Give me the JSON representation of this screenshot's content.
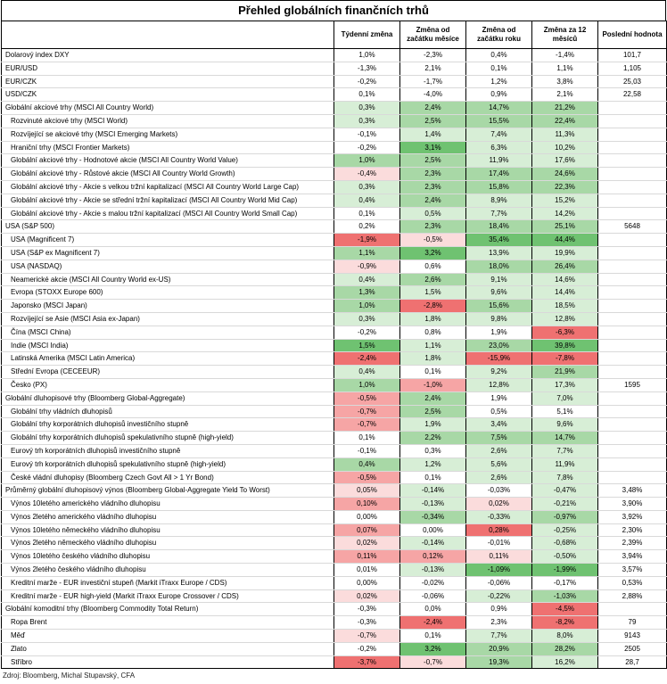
{
  "title": "Přehled globálních finančních trhů",
  "headers": [
    "",
    "Týdenní změna",
    "Změna od začátku měsíce",
    "Změna od začátku roku",
    "Změna za 12 měsíců",
    "Poslední hodnota"
  ],
  "colors": {
    "gL": "#d7eed6",
    "gM": "#a8d8a6",
    "gD": "#6fc271",
    "rL": "#fbdcdc",
    "rM": "#f6a5a5",
    "rD": "#ef7171"
  },
  "sections": [
    {
      "rows": [
        {
          "label": "Dolarový index DXY",
          "ind": false,
          "vals": [
            "1,0%",
            "-2,3%",
            "0,4%",
            "-1,4%",
            "101,7"
          ],
          "c": [
            "",
            "",
            "",
            "",
            ""
          ]
        },
        {
          "label": "EUR/USD",
          "ind": false,
          "vals": [
            "-1,3%",
            "2,1%",
            "0,1%",
            "1,1%",
            "1,105"
          ],
          "c": [
            "",
            "",
            "",
            "",
            ""
          ]
        },
        {
          "label": "EUR/CZK",
          "ind": false,
          "vals": [
            "-0,2%",
            "-1,7%",
            "1,2%",
            "3,8%",
            "25,03"
          ],
          "c": [
            "",
            "",
            "",
            "",
            ""
          ]
        },
        {
          "label": "USD/CZK",
          "ind": false,
          "vals": [
            "0,1%",
            "-4,0%",
            "0,9%",
            "2,1%",
            "22,58"
          ],
          "c": [
            "",
            "",
            "",
            "",
            ""
          ]
        }
      ]
    },
    {
      "rows": [
        {
          "label": "Globální akciové trhy (MSCI All Country World)",
          "ind": false,
          "vals": [
            "0,3%",
            "2,4%",
            "14,7%",
            "21,2%",
            ""
          ],
          "c": [
            "gL",
            "gM",
            "gM",
            "gM",
            ""
          ]
        },
        {
          "label": "Rozvinuté akciové trhy (MSCI World)",
          "ind": true,
          "vals": [
            "0,3%",
            "2,5%",
            "15,5%",
            "22,4%",
            ""
          ],
          "c": [
            "gL",
            "gM",
            "gM",
            "gM",
            ""
          ]
        },
        {
          "label": "Rozvíjející se akciové trhy (MSCI Emerging Markets)",
          "ind": true,
          "vals": [
            "-0,1%",
            "1,4%",
            "7,4%",
            "11,3%",
            ""
          ],
          "c": [
            "",
            "gL",
            "gL",
            "gL",
            ""
          ]
        },
        {
          "label": "Hraniční trhy (MSCI Frontier Markets)",
          "ind": true,
          "vals": [
            "-0,2%",
            "3,1%",
            "6,3%",
            "10,2%",
            ""
          ],
          "c": [
            "",
            "gD",
            "gL",
            "gL",
            ""
          ]
        },
        {
          "label": "Globální akciové trhy - Hodnotové akcie (MSCI All Country World Value)",
          "ind": true,
          "vals": [
            "1,0%",
            "2,5%",
            "11,9%",
            "17,6%",
            ""
          ],
          "c": [
            "gM",
            "gM",
            "gL",
            "gL",
            ""
          ]
        },
        {
          "label": "Globální akciové trhy - Růstové akcie (MSCI All Country World Growth)",
          "ind": true,
          "vals": [
            "-0,4%",
            "2,3%",
            "17,4%",
            "24,6%",
            ""
          ],
          "c": [
            "rL",
            "gM",
            "gM",
            "gM",
            ""
          ]
        },
        {
          "label": "Globální akciové trhy - Akcie s velkou tržní kapitalizací (MSCI All Country World Large Cap)",
          "ind": true,
          "vals": [
            "0,3%",
            "2,3%",
            "15,8%",
            "22,3%",
            ""
          ],
          "c": [
            "gL",
            "gM",
            "gM",
            "gM",
            ""
          ]
        },
        {
          "label": "Globální akciové trhy - Akcie se střední tržní kapitalizací (MSCI All Country World Mid Cap)",
          "ind": true,
          "vals": [
            "0,4%",
            "2,4%",
            "8,9%",
            "15,2%",
            ""
          ],
          "c": [
            "gL",
            "gM",
            "gL",
            "gL",
            ""
          ]
        },
        {
          "label": "Globální akciové trhy - Akcie s malou tržní kapitalizací (MSCI All Country World Small Cap)",
          "ind": true,
          "vals": [
            "0,1%",
            "0,5%",
            "7,7%",
            "14,2%",
            ""
          ],
          "c": [
            "",
            "gL",
            "gL",
            "gL",
            ""
          ]
        },
        {
          "label": "USA (S&P 500)",
          "ind": false,
          "vals": [
            "0,2%",
            "2,3%",
            "18,4%",
            "25,1%",
            "5648"
          ],
          "c": [
            "",
            "gM",
            "gM",
            "gM",
            ""
          ]
        },
        {
          "label": "USA (Magnificent 7)",
          "ind": true,
          "vals": [
            "-1,9%",
            "-0,5%",
            "35,4%",
            "44,4%",
            ""
          ],
          "c": [
            "rD",
            "rL",
            "gD",
            "gD",
            ""
          ]
        },
        {
          "label": "USA (S&P ex Magnificent 7)",
          "ind": true,
          "vals": [
            "1,1%",
            "3,2%",
            "13,9%",
            "19,9%",
            ""
          ],
          "c": [
            "gM",
            "gD",
            "gL",
            "gL",
            ""
          ]
        },
        {
          "label": "USA (NASDAQ)",
          "ind": true,
          "vals": [
            "-0,9%",
            "0,6%",
            "18,0%",
            "26,4%",
            ""
          ],
          "c": [
            "rL",
            "",
            "gM",
            "gM",
            ""
          ]
        },
        {
          "label": "Neamerické akcie (MSCI All Country World ex-US)",
          "ind": true,
          "vals": [
            "0,4%",
            "2,6%",
            "9,1%",
            "14,6%",
            ""
          ],
          "c": [
            "gL",
            "gM",
            "gL",
            "gL",
            ""
          ]
        },
        {
          "label": "Evropa (STOXX Europe 600)",
          "ind": true,
          "vals": [
            "1,3%",
            "1,5%",
            "9,6%",
            "14,4%",
            ""
          ],
          "c": [
            "gM",
            "gL",
            "gL",
            "gL",
            ""
          ]
        },
        {
          "label": "Japonsko (MSCI Japan)",
          "ind": true,
          "vals": [
            "1,0%",
            "-2,8%",
            "15,6%",
            "18,5%",
            ""
          ],
          "c": [
            "gM",
            "rD",
            "gM",
            "gL",
            ""
          ]
        },
        {
          "label": "Rozvíjející se Asie (MSCI Asia ex-Japan)",
          "ind": true,
          "vals": [
            "0,3%",
            "1,8%",
            "9,8%",
            "12,8%",
            ""
          ],
          "c": [
            "gL",
            "gL",
            "gL",
            "gL",
            ""
          ]
        },
        {
          "label": "Čína (MSCI China)",
          "ind": true,
          "vals": [
            "-0,2%",
            "0,8%",
            "1,9%",
            "-6,3%",
            ""
          ],
          "c": [
            "",
            "",
            "",
            "rD",
            ""
          ]
        },
        {
          "label": "Indie (MSCI India)",
          "ind": true,
          "vals": [
            "1,5%",
            "1,1%",
            "23,0%",
            "39,8%",
            ""
          ],
          "c": [
            "gD",
            "gL",
            "gM",
            "gD",
            ""
          ]
        },
        {
          "label": "Latinská Amerika (MSCI Latin America)",
          "ind": true,
          "vals": [
            "-2,4%",
            "1,8%",
            "-15,9%",
            "-7,8%",
            ""
          ],
          "c": [
            "rD",
            "gL",
            "rD",
            "rD",
            ""
          ]
        },
        {
          "label": "Střední Evropa (CECEEUR)",
          "ind": true,
          "vals": [
            "0,4%",
            "0,1%",
            "9,2%",
            "21,9%",
            ""
          ],
          "c": [
            "gL",
            "",
            "gL",
            "gM",
            ""
          ]
        },
        {
          "label": "Česko (PX)",
          "ind": true,
          "vals": [
            "1,0%",
            "-1,0%",
            "12,8%",
            "17,3%",
            "1595"
          ],
          "c": [
            "gM",
            "rM",
            "gL",
            "gL",
            ""
          ]
        }
      ]
    },
    {
      "rows": [
        {
          "label": "Globální dluhopisové trhy (Bloomberg Global-Aggregate)",
          "ind": false,
          "vals": [
            "-0,5%",
            "2,4%",
            "1,9%",
            "7,0%",
            ""
          ],
          "c": [
            "rM",
            "gM",
            "",
            "gL",
            ""
          ]
        },
        {
          "label": "Globální trhy vládních dluhopisů",
          "ind": true,
          "vals": [
            "-0,7%",
            "2,5%",
            "0,5%",
            "5,1%",
            ""
          ],
          "c": [
            "rM",
            "gM",
            "",
            "",
            ""
          ]
        },
        {
          "label": "Globální trhy korporátních dluhopisů investičního stupně",
          "ind": true,
          "vals": [
            "-0,7%",
            "1,9%",
            "3,4%",
            "9,6%",
            ""
          ],
          "c": [
            "rM",
            "gL",
            "gL",
            "gL",
            ""
          ]
        },
        {
          "label": "Globální trhy korporátních dluhopisů spekulativního stupně (high-yield)",
          "ind": true,
          "vals": [
            "0,1%",
            "2,2%",
            "7,5%",
            "14,7%",
            ""
          ],
          "c": [
            "",
            "gM",
            "gM",
            "gM",
            ""
          ]
        },
        {
          "label": "Eurový trh korporátních dluhopisů investičního stupně",
          "ind": true,
          "vals": [
            "-0,1%",
            "0,3%",
            "2,6%",
            "7,7%",
            ""
          ],
          "c": [
            "",
            "",
            "gL",
            "gL",
            ""
          ]
        },
        {
          "label": "Eurový trh korporátních dluhopisů spekulativního stupně (high-yield)",
          "ind": true,
          "vals": [
            "0,4%",
            "1,2%",
            "5,6%",
            "11,9%",
            ""
          ],
          "c": [
            "gM",
            "gL",
            "gL",
            "gL",
            ""
          ]
        },
        {
          "label": "České vládní dluhopisy (Bloomberg Czech Govt All > 1 Yr Bond)",
          "ind": true,
          "vals": [
            "-0,5%",
            "0,1%",
            "2,6%",
            "7,8%",
            ""
          ],
          "c": [
            "rM",
            "",
            "gL",
            "gL",
            ""
          ]
        }
      ]
    },
    {
      "rows": [
        {
          "label": "Průměrný globální dluhopisový výnos (Bloomberg Global-Aggregate Yield To Worst)",
          "ind": false,
          "vals": [
            "0,05%",
            "-0,14%",
            "-0,03%",
            "-0,47%",
            "3,48%"
          ],
          "c": [
            "rL",
            "gL",
            "",
            "gL",
            ""
          ]
        },
        {
          "label": "Výnos 10letého amerického vládního dluhopisu",
          "ind": true,
          "vals": [
            "0,10%",
            "-0,13%",
            "0,02%",
            "-0,21%",
            "3,90%"
          ],
          "c": [
            "rM",
            "gL",
            "rL",
            "gL",
            ""
          ]
        },
        {
          "label": "Výnos 2letého amerického vládního dluhopisu",
          "ind": true,
          "vals": [
            "0,00%",
            "-0,34%",
            "-0,33%",
            "-0,97%",
            "3,92%"
          ],
          "c": [
            "",
            "gM",
            "gL",
            "gM",
            ""
          ]
        },
        {
          "label": "Výnos 10letého německého vládního dluhopisu",
          "ind": true,
          "vals": [
            "0,07%",
            "0,00%",
            "0,28%",
            "-0,25%",
            "2,30%"
          ],
          "c": [
            "rM",
            "",
            "rD",
            "gL",
            ""
          ]
        },
        {
          "label": "Výnos 2letého německého vládního dluhopisu",
          "ind": true,
          "vals": [
            "0,02%",
            "-0,14%",
            "-0,01%",
            "-0,68%",
            "2,39%"
          ],
          "c": [
            "rL",
            "gL",
            "",
            "gL",
            ""
          ]
        },
        {
          "label": "Výnos 10letého českého vládního dluhopisu",
          "ind": true,
          "vals": [
            "0,11%",
            "0,12%",
            "0,11%",
            "-0,50%",
            "3,94%"
          ],
          "c": [
            "rM",
            "rM",
            "rL",
            "gL",
            ""
          ]
        },
        {
          "label": "Výnos 2letého českého vládního dluhopisu",
          "ind": true,
          "vals": [
            "0,01%",
            "-0,13%",
            "-1,09%",
            "-1,99%",
            "3,57%"
          ],
          "c": [
            "",
            "gL",
            "gD",
            "gD",
            ""
          ]
        },
        {
          "label": "Kreditní marže - EUR investiční stupeň (Markit iTraxx Europe / CDS)",
          "ind": true,
          "vals": [
            "0,00%",
            "-0,02%",
            "-0,06%",
            "-0,17%",
            "0,53%"
          ],
          "c": [
            "",
            "",
            "",
            "",
            ""
          ]
        },
        {
          "label": "Kreditní marže - EUR high-yield (Markit iTraxx Europe Crossover / CDS)",
          "ind": true,
          "vals": [
            "0,02%",
            "-0,06%",
            "-0,22%",
            "-1,03%",
            "2,88%"
          ],
          "c": [
            "rL",
            "",
            "gL",
            "gM",
            ""
          ]
        }
      ]
    },
    {
      "rows": [
        {
          "label": "Globální komoditní trhy (Bloomberg Commodity Total Return)",
          "ind": false,
          "vals": [
            "-0,3%",
            "0,0%",
            "0,9%",
            "-4,5%",
            ""
          ],
          "c": [
            "",
            "",
            "",
            "rD",
            ""
          ]
        },
        {
          "label": "Ropa Brent",
          "ind": true,
          "vals": [
            "-0,3%",
            "-2,4%",
            "2,3%",
            "-8,2%",
            "79"
          ],
          "c": [
            "",
            "rD",
            "",
            "rD",
            ""
          ]
        },
        {
          "label": "Měď",
          "ind": true,
          "vals": [
            "-0,7%",
            "0,1%",
            "7,7%",
            "8,0%",
            "9143"
          ],
          "c": [
            "rL",
            "",
            "gL",
            "gL",
            ""
          ]
        },
        {
          "label": "Zlato",
          "ind": true,
          "vals": [
            "-0,2%",
            "3,2%",
            "20,9%",
            "28,2%",
            "2505"
          ],
          "c": [
            "",
            "gD",
            "gM",
            "gM",
            ""
          ]
        },
        {
          "label": "Stříbro",
          "ind": true,
          "vals": [
            "-3,7%",
            "-0,7%",
            "19,3%",
            "16,2%",
            "28,7"
          ],
          "c": [
            "rD",
            "rL",
            "gM",
            "gL",
            ""
          ]
        }
      ]
    }
  ],
  "source": "Zdroj: Bloomberg, Michal Stupavský, CFA"
}
